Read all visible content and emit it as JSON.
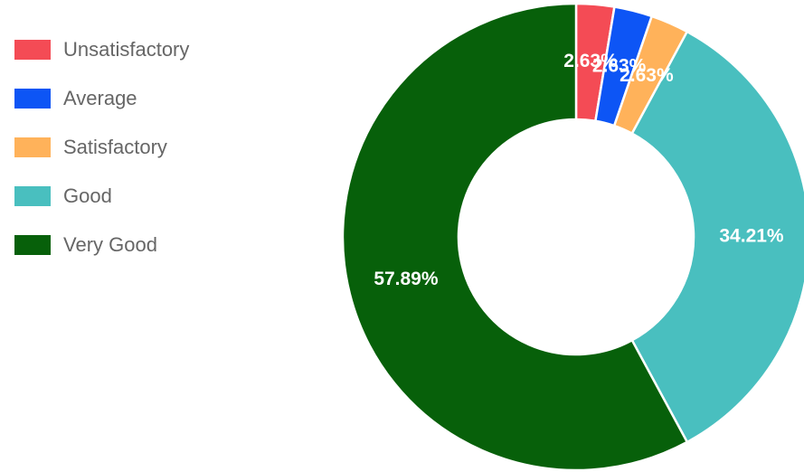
{
  "chart_data": {
    "type": "pie",
    "variant": "doughnut",
    "categories": [
      "Unsatisfactory",
      "Average",
      "Satisfactory",
      "Good",
      "Very Good"
    ],
    "values": [
      2.63,
      2.63,
      2.63,
      34.21,
      57.89
    ],
    "value_labels": [
      "2.63%",
      "2.63%",
      "2.63%",
      "34.21%",
      "57.89%"
    ],
    "colors": [
      "#f44b55",
      "#0d55f5",
      "#ffb25a",
      "#49bfbf",
      "#07600a"
    ],
    "legend_position": "top-left",
    "title": ""
  }
}
